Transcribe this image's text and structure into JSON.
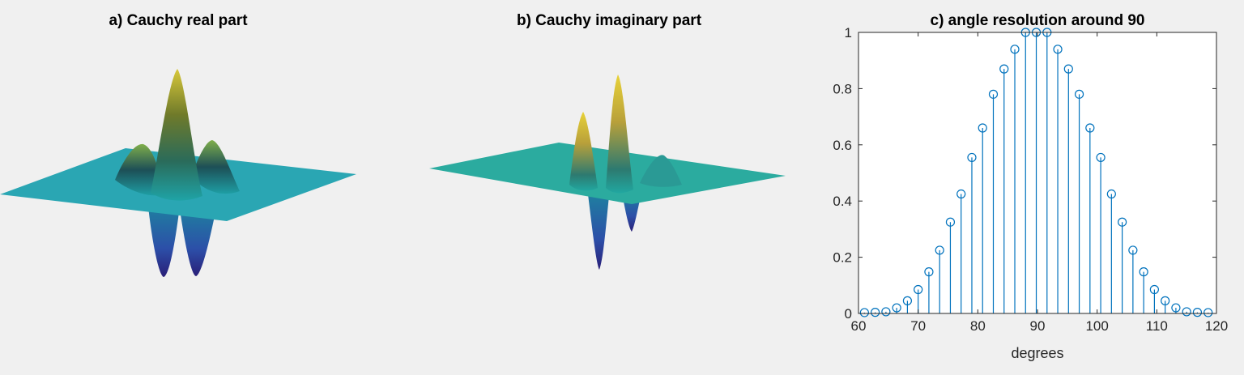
{
  "figure": {
    "background": "#f0f0f0",
    "panels": [
      {
        "id": "a",
        "title": "a) Cauchy real part",
        "type": "3d-surface",
        "colormap": "parula"
      },
      {
        "id": "b",
        "title": "b) Cauchy imaginary part",
        "type": "3d-surface",
        "colormap": "parula"
      }
    ]
  },
  "chart_data": {
    "type": "stem",
    "title": "c) angle resolution around 90",
    "xlabel": "degrees",
    "ylabel": "",
    "xlim": [
      60,
      120
    ],
    "ylim": [
      0,
      1
    ],
    "xticks": [
      60,
      70,
      80,
      90,
      100,
      110,
      120
    ],
    "yticks": [
      0,
      0.2,
      0.4,
      0.6,
      0.8,
      1
    ],
    "grid": false,
    "series_color": "#0072bd",
    "x": [
      61,
      62.8,
      64.6,
      66.4,
      68.2,
      70,
      71.8,
      73.6,
      75.4,
      77.2,
      79,
      80.8,
      82.6,
      84.4,
      86.2,
      88,
      89.8,
      91.6,
      93.4,
      95.2,
      97,
      98.8,
      100.6,
      102.4,
      104.2,
      106,
      107.8,
      109.6,
      111.4,
      113.2,
      115,
      116.8,
      118.6
    ],
    "values": [
      0.003,
      0.004,
      0.006,
      0.02,
      0.045,
      0.085,
      0.148,
      0.225,
      0.325,
      0.425,
      0.555,
      0.66,
      0.78,
      0.87,
      0.94,
      1,
      1,
      1,
      0.94,
      0.87,
      0.78,
      0.66,
      0.555,
      0.425,
      0.325,
      0.225,
      0.148,
      0.085,
      0.045,
      0.02,
      0.006,
      0.004,
      0.003
    ]
  }
}
